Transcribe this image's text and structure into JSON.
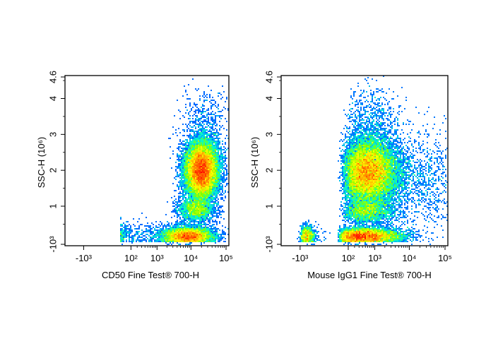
{
  "chart_data": [
    {
      "type": "scatter",
      "style": "density-pseudocolor",
      "xlabel": "CD50 Fine Test® 700-H",
      "ylabel": "SSC-H (10⁶)",
      "x_scale": "biexponential",
      "y_scale": "biexponential",
      "xlim": [
        -3000,
        100000
      ],
      "ylim": [
        -1000,
        4600000
      ],
      "x_ticks": [
        {
          "label": "-10³",
          "value": -1000
        },
        {
          "label": "10²",
          "value": 100
        },
        {
          "label": "10³",
          "value": 1000
        },
        {
          "label": "10⁴",
          "value": 10000
        },
        {
          "label": "10⁵",
          "value": 100000
        }
      ],
      "y_ticks": [
        {
          "label": "-10³",
          "value": -1000
        },
        {
          "label": "1",
          "value": 1000000
        },
        {
          "label": "2",
          "value": 2000000
        },
        {
          "label": "3",
          "value": 3000000
        },
        {
          "label": "4",
          "value": 4000000
        },
        {
          "label": "4.6",
          "value": 4600000
        }
      ],
      "populations": [
        {
          "x_center": 20000,
          "y_center": 2000000,
          "x_spread": 0.11,
          "y_spread": 400000,
          "weight": 0.58
        },
        {
          "x_center": 8000,
          "y_center": 150000,
          "x_spread": 0.16,
          "y_spread": 130000,
          "weight": 0.24
        },
        {
          "x_center": 14000,
          "y_center": 900000,
          "x_spread": 0.12,
          "y_spread": 170000,
          "weight": 0.07
        },
        {
          "x_center": 400,
          "y_center": 150000,
          "x_spread": 0.6,
          "y_spread": 200000,
          "weight": 0.03
        },
        {
          "x_center": 25000,
          "y_center": 3300000,
          "x_spread": 0.15,
          "y_spread": 500000,
          "weight": 0.02
        }
      ]
    },
    {
      "type": "scatter",
      "style": "density-pseudocolor",
      "xlabel": "Mouse IgG1 Fine Test® 700-H",
      "ylabel": "SSC-H (10⁶)",
      "x_scale": "biexponential",
      "y_scale": "biexponential",
      "xlim": [
        -3000,
        100000
      ],
      "ylim": [
        -1000,
        4600000
      ],
      "x_ticks": [
        {
          "label": "-10³",
          "value": -1000
        },
        {
          "label": "10²",
          "value": 100
        },
        {
          "label": "10³",
          "value": 1000
        },
        {
          "label": "10⁴",
          "value": 10000
        },
        {
          "label": "10⁵",
          "value": 100000
        }
      ],
      "y_ticks": [
        {
          "label": "-10³",
          "value": -1000
        },
        {
          "label": "1",
          "value": 1000000
        },
        {
          "label": "2",
          "value": 2000000
        },
        {
          "label": "3",
          "value": 3000000
        },
        {
          "label": "4",
          "value": 4000000
        },
        {
          "label": "4.6",
          "value": 4600000
        }
      ],
      "populations": [
        {
          "x_center": 650,
          "y_center": 1950000,
          "x_spread": 0.2,
          "y_spread": 450000,
          "weight": 0.55
        },
        {
          "x_center": 500,
          "y_center": 150000,
          "x_spread": 0.25,
          "y_spread": 120000,
          "weight": 0.25
        },
        {
          "x_center": 600,
          "y_center": 850000,
          "x_spread": 0.2,
          "y_spread": 170000,
          "weight": 0.07
        },
        {
          "x_center": 20000,
          "y_center": 1700000,
          "x_spread": 0.45,
          "y_spread": 700000,
          "weight": 0.06
        },
        {
          "x_center": -600,
          "y_center": 150000,
          "x_spread": 0.3,
          "y_spread": 150000,
          "weight": 0.04
        },
        {
          "x_center": 800,
          "y_center": 3300000,
          "x_spread": 0.2,
          "y_spread": 500000,
          "weight": 0.03
        }
      ]
    }
  ],
  "colors": {
    "axis": "#000000",
    "density_scale": [
      "#0000ff",
      "#00a0ff",
      "#00ffcc",
      "#80ff00",
      "#ffff00",
      "#ff8000",
      "#ff0000"
    ]
  }
}
